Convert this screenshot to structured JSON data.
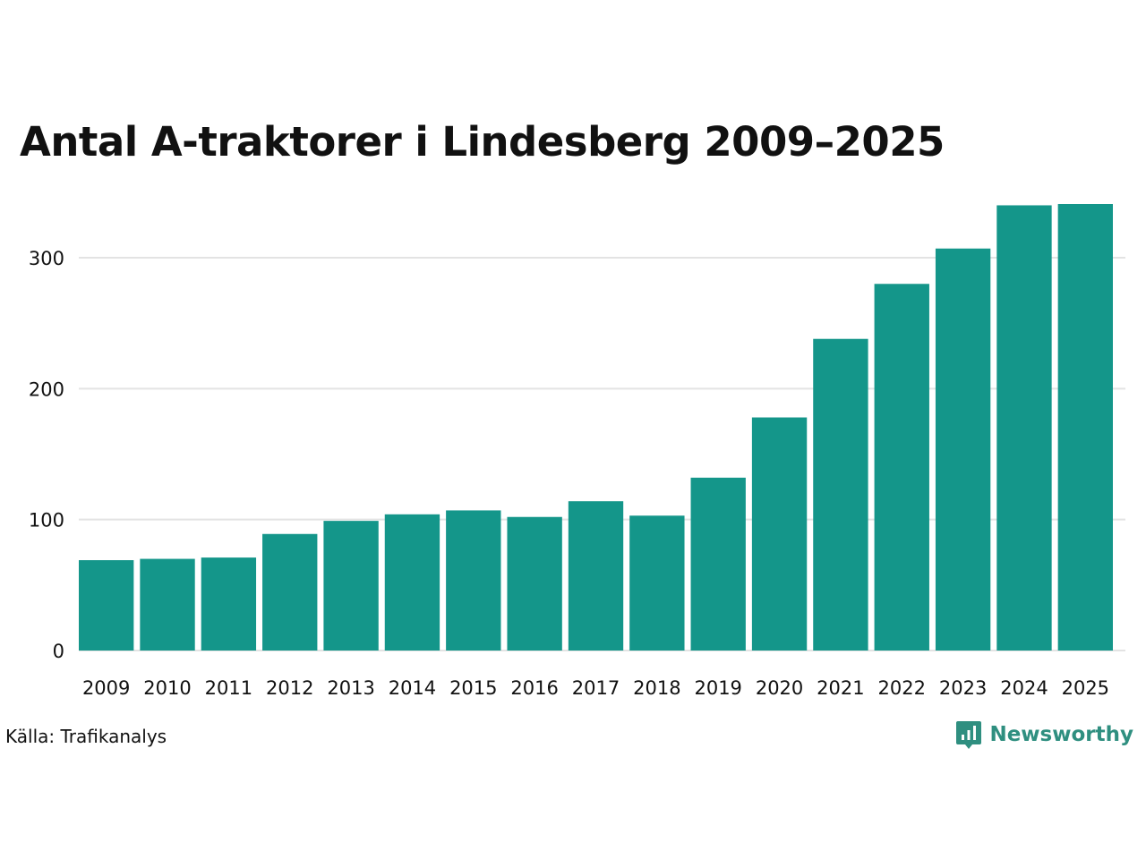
{
  "chart_data": {
    "type": "bar",
    "title": "Antal A-traktorer i Lindesberg 2009–2025",
    "xlabel": "",
    "ylabel": "",
    "categories": [
      "2009",
      "2010",
      "2011",
      "2012",
      "2013",
      "2014",
      "2015",
      "2016",
      "2017",
      "2018",
      "2019",
      "2020",
      "2021",
      "2022",
      "2023",
      "2024",
      "2025"
    ],
    "values": [
      69,
      70,
      71,
      89,
      99,
      104,
      107,
      102,
      114,
      103,
      132,
      178,
      238,
      280,
      307,
      340,
      341
    ],
    "ylim": [
      0,
      341
    ],
    "yticks": [
      0,
      100,
      200,
      300
    ],
    "grid": true,
    "bar_color": "#14968a",
    "grid_color": "#e3e3e3"
  },
  "footer": {
    "source": "Källa: Trafikanalys",
    "brand": "Newsworthy",
    "brand_color": "#2f8f80",
    "brand_icon": "newsworthy-logo"
  }
}
